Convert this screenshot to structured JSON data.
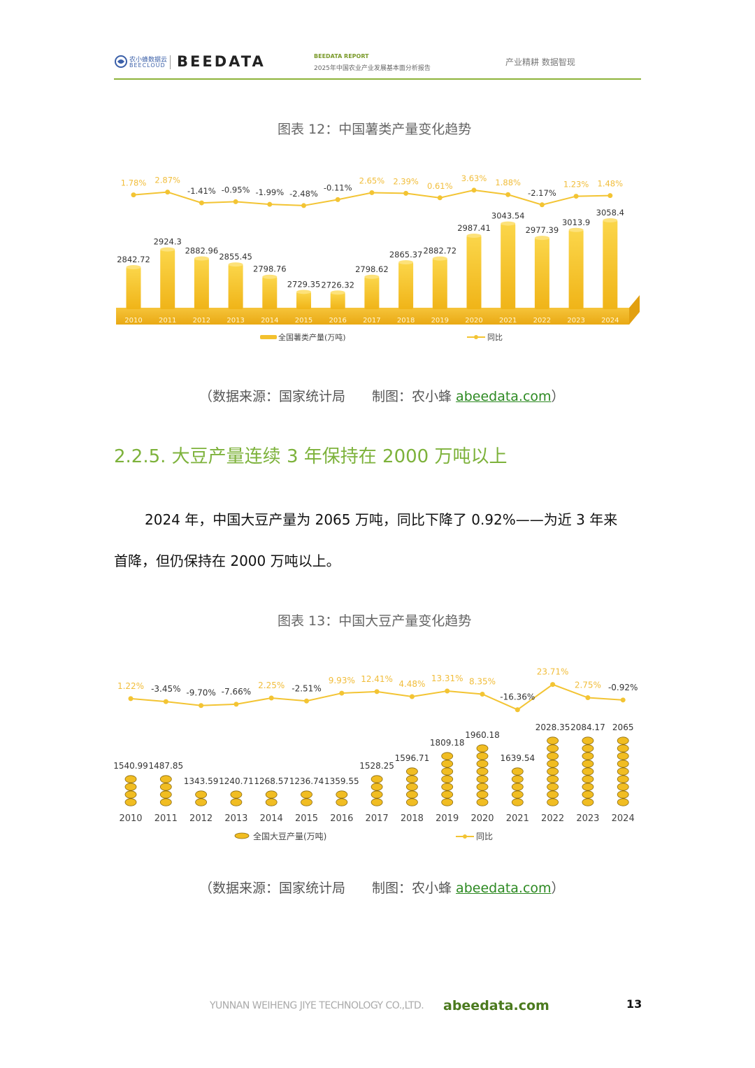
{
  "header": {
    "brand_cn": "农小蜂数据云",
    "brand_en": "BEECLOUD",
    "logo": "BEEDATA",
    "report_label": "BEEDATA REPORT",
    "report_title": "2025年中国农业产业发展基本面分析报告",
    "slogan": "产业精耕 数据智现"
  },
  "figure12": {
    "title": "图表 12：中国薯类产量变化趋势",
    "source_prefix": "（数据来源：国家统计局　　制图：农小蜂 ",
    "source_link": "abeedata.com",
    "source_suffix": "）",
    "legend_bar": "全国薯类产量(万吨)",
    "legend_line": "同比"
  },
  "figure13": {
    "title": "图表 13：中国大豆产量变化趋势",
    "source_prefix": "（数据来源：国家统计局　　制图：农小蜂 ",
    "source_link": "abeedata.com",
    "source_suffix": "）",
    "legend_bar": "全国大豆产量(万吨)",
    "legend_line": "同比"
  },
  "section": {
    "heading": "2.2.5.  大豆产量连续 3 年保持在 2000 万吨以上",
    "para_line1": "2024 年，中国大豆产量为 2065 万吨，同比下降了 0.92%——为近 3 年来",
    "para_line2": "首降，但仍保持在 2000 万吨以上。"
  },
  "footer": {
    "company": "YUNNAN WEIHENG JIYE TECHNOLOGY CO.,LTD.",
    "site": "abeedata.com",
    "page_number": "13"
  },
  "colors": {
    "accent_green": "#7db23b",
    "bar_gold": "#f5c12e",
    "line_gold": "#f3c433",
    "link_green": "#2d8a22"
  },
  "chart_data": [
    {
      "type": "bar",
      "categories": [
        "2010",
        "2011",
        "2012",
        "2013",
        "2014",
        "2015",
        "2016",
        "2017",
        "2018",
        "2019",
        "2020",
        "2021",
        "2022",
        "2023",
        "2024"
      ],
      "series": [
        {
          "name": "全国薯类产量(万吨)",
          "values": [
            2842.72,
            2924.3,
            2882.96,
            2855.45,
            2798.76,
            2729.35,
            2726.32,
            2798.62,
            2865.37,
            2882.72,
            2987.41,
            3043.54,
            2977.39,
            3013.9,
            3058.4
          ]
        },
        {
          "name": "同比",
          "values": [
            1.78,
            2.87,
            -1.41,
            -0.95,
            -1.99,
            -2.48,
            -0.11,
            2.65,
            2.39,
            0.61,
            3.63,
            1.88,
            -2.17,
            1.23,
            1.48
          ]
        }
      ],
      "bar_labels": [
        "2842.72",
        "2924.3",
        "2882.96",
        "2855.45",
        "2798.76",
        "2729.35",
        "2726.32",
        "2798.62",
        "2865.37",
        "2882.72",
        "2987.41",
        "3043.54",
        "2977.39",
        "3013.9",
        "3058.4"
      ],
      "line_labels": [
        "1.78%",
        "2.87%",
        "-1.41%",
        "-0.95%",
        "-1.99%",
        "-2.48%",
        "-0.11%",
        "2.65%",
        "2.39%",
        "0.61%",
        "3.63%",
        "1.88%",
        "-2.17%",
        "1.23%",
        "1.48%"
      ],
      "legend": "bottom"
    },
    {
      "type": "bar",
      "categories": [
        "2010",
        "2011",
        "2012",
        "2013",
        "2014",
        "2015",
        "2016",
        "2017",
        "2018",
        "2019",
        "2020",
        "2021",
        "2022",
        "2023",
        "2024"
      ],
      "series": [
        {
          "name": "全国大豆产量(万吨)",
          "values": [
            1540.99,
            1487.85,
            1343.59,
            1240.71,
            1268.57,
            1236.74,
            1359.55,
            1528.25,
            1596.71,
            1809.18,
            1960.18,
            1639.54,
            2028.35,
            2084.17,
            2065
          ]
        },
        {
          "name": "同比",
          "values": [
            1.22,
            -3.45,
            -9.7,
            -7.66,
            2.25,
            -2.51,
            9.93,
            12.41,
            4.48,
            13.31,
            8.35,
            -16.36,
            23.71,
            2.75,
            -0.92
          ]
        }
      ],
      "bar_labels": [
        "1540.99",
        "1487.85",
        "1343.59",
        "1240.71",
        "1268.57",
        "1236.74",
        "1359.55",
        "1528.25",
        "1596.71",
        "1809.18",
        "1960.18",
        "1639.54",
        "2028.35",
        "2084.17",
        "2065"
      ],
      "line_labels": [
        "1.22%",
        "-3.45%",
        "-9.70%",
        "-7.66%",
        "2.25%",
        "-2.51%",
        "9.93%",
        "12.41%",
        "4.48%",
        "13.31%",
        "8.35%",
        "-16.36%",
        "23.71%",
        "2.75%",
        "-0.92%"
      ],
      "legend": "bottom"
    }
  ]
}
